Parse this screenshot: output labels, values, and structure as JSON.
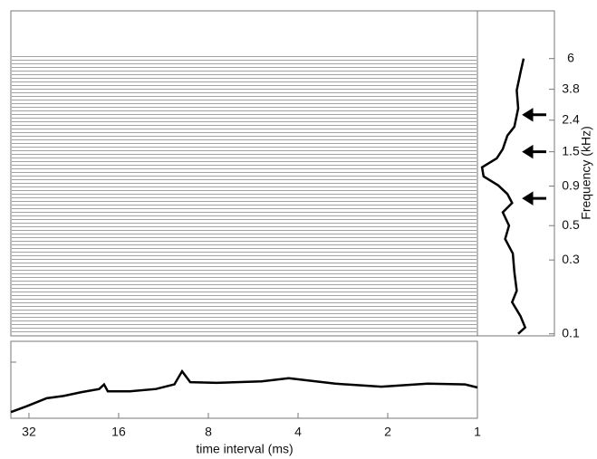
{
  "chart_data": [
    {
      "type": "line",
      "orientation": "vertical",
      "y_label": "Frequency (kHz)",
      "log_y": true,
      "ylim": [
        0.097,
        12.2
      ],
      "yticks": [
        0.1,
        0.3,
        0.5,
        0.9,
        1.5,
        2.4,
        3.8,
        6
      ],
      "xlim": [
        0,
        1
      ],
      "color": "#000000",
      "y": [
        6.0,
        4.9,
        3.74,
        2.86,
        2.18,
        1.91,
        1.56,
        1.36,
        1.19,
        1.04,
        0.91,
        0.8,
        0.7,
        0.61,
        0.5,
        0.41,
        0.33,
        0.25,
        0.19,
        0.16,
        0.13,
        0.11,
        0.1
      ],
      "values": [
        0.6,
        0.56,
        0.51,
        0.53,
        0.48,
        0.39,
        0.33,
        0.25,
        0.06,
        0.08,
        0.27,
        0.39,
        0.45,
        0.33,
        0.41,
        0.36,
        0.46,
        0.48,
        0.51,
        0.45,
        0.56,
        0.62,
        0.53
      ],
      "arrows": [
        2.6,
        1.5,
        0.75
      ]
    },
    {
      "type": "line",
      "x_label": "time interval (ms)",
      "log_x": true,
      "xlim": [
        36.8,
        1
      ],
      "xticks": [
        32,
        16,
        8,
        4,
        2,
        1
      ],
      "ylim": [
        0,
        1
      ],
      "color": "#000000",
      "x": [
        36.8,
        32.4,
        27.9,
        24.5,
        21.3,
        18.6,
        17.9,
        17.4,
        14.7,
        12.0,
        10.4,
        9.8,
        9.2,
        7.5,
        5.3,
        4.3,
        3.0,
        2.1,
        1.47,
        1.1,
        1.0
      ],
      "values": [
        0.08,
        0.16,
        0.26,
        0.29,
        0.34,
        0.38,
        0.44,
        0.35,
        0.35,
        0.38,
        0.44,
        0.61,
        0.47,
        0.46,
        0.48,
        0.52,
        0.45,
        0.41,
        0.45,
        0.44,
        0.4
      ]
    }
  ]
}
